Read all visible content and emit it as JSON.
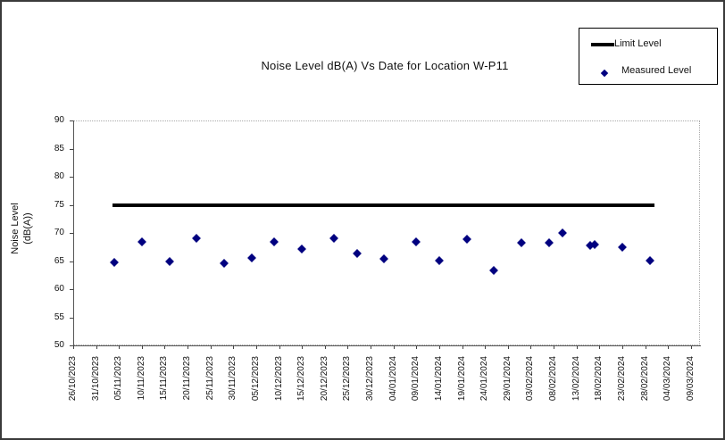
{
  "window": {
    "background": "#ffffff",
    "border_color": "#3a3a3a"
  },
  "colors": {
    "limit_line": "#000000",
    "measured_marker": "#000080",
    "plot_border": "#a9a9a9",
    "axis": "#555555",
    "text": "#111111"
  },
  "chart_data": {
    "type": "scatter",
    "title": "Noise Level dB(A) Vs Date for Location W-P11",
    "xlabel": "",
    "ylabel": "Noise Level (dB(A))",
    "ylabel_lines": [
      "Noise Level",
      "(dB(A))"
    ],
    "ylim": [
      50,
      90
    ],
    "y_ticks": [
      50,
      55,
      60,
      65,
      70,
      75,
      80,
      85,
      90
    ],
    "grid": "off",
    "legend_position": "top-right",
    "x_axis_start_date": "26/10/2023",
    "x_axis_end_date": "09/03/2024",
    "x_tick_interval_days": 5,
    "x_tick_labels": [
      "26/10/2023",
      "31/10/2023",
      "05/11/2023",
      "10/11/2023",
      "15/11/2023",
      "20/11/2023",
      "25/11/2023",
      "30/11/2023",
      "05/12/2023",
      "10/12/2023",
      "15/12/2023",
      "20/12/2023",
      "25/12/2023",
      "30/12/2023",
      "04/01/2024",
      "09/01/2024",
      "14/01/2024",
      "19/01/2024",
      "24/01/2024",
      "29/01/2024",
      "03/02/2024",
      "08/02/2024",
      "13/02/2024",
      "18/02/2024",
      "23/02/2024",
      "28/02/2024",
      "04/03/2024",
      "09/03/2024"
    ],
    "series": [
      {
        "name": "Limit Level",
        "type": "line",
        "color": "#000000",
        "value": 75,
        "start_day": 8.5,
        "end_day": 127,
        "start_date_approx": "04/11/2023",
        "end_date_approx": "01/03/2024"
      },
      {
        "name": "Measured Level",
        "type": "scatter",
        "marker": "diamond",
        "color": "#000080",
        "points": [
          {
            "day": 9,
            "date_approx": "04/11/2023",
            "value": 64.8
          },
          {
            "day": 15,
            "date_approx": "10/11/2023",
            "value": 68.4
          },
          {
            "day": 21,
            "date_approx": "16/11/2023",
            "value": 65.0
          },
          {
            "day": 27,
            "date_approx": "22/11/2023",
            "value": 69.0
          },
          {
            "day": 33,
            "date_approx": "28/11/2023",
            "value": 64.6
          },
          {
            "day": 39,
            "date_approx": "04/12/2023",
            "value": 65.5
          },
          {
            "day": 44,
            "date_approx": "09/12/2023",
            "value": 68.4
          },
          {
            "day": 50,
            "date_approx": "15/12/2023",
            "value": 67.2
          },
          {
            "day": 57,
            "date_approx": "22/12/2023",
            "value": 69.0
          },
          {
            "day": 62,
            "date_approx": "27/12/2023",
            "value": 66.4
          },
          {
            "day": 68,
            "date_approx": "02/01/2024",
            "value": 65.4
          },
          {
            "day": 75,
            "date_approx": "09/01/2024",
            "value": 68.4
          },
          {
            "day": 80,
            "date_approx": "14/01/2024",
            "value": 65.1
          },
          {
            "day": 86,
            "date_approx": "20/01/2024",
            "value": 68.9
          },
          {
            "day": 92,
            "date_approx": "26/01/2024",
            "value": 63.4
          },
          {
            "day": 98,
            "date_approx": "01/02/2024",
            "value": 68.2
          },
          {
            "day": 104,
            "date_approx": "07/02/2024",
            "value": 68.3
          },
          {
            "day": 107,
            "date_approx": "10/02/2024",
            "value": 70.0
          },
          {
            "day": 113,
            "date_approx": "16/02/2024",
            "value": 67.8
          },
          {
            "day": 114,
            "date_approx": "17/02/2024",
            "value": 68.0
          },
          {
            "day": 120,
            "date_approx": "23/02/2024",
            "value": 67.5
          },
          {
            "day": 126,
            "date_approx": "29/02/2024",
            "value": 65.1
          }
        ]
      }
    ]
  }
}
